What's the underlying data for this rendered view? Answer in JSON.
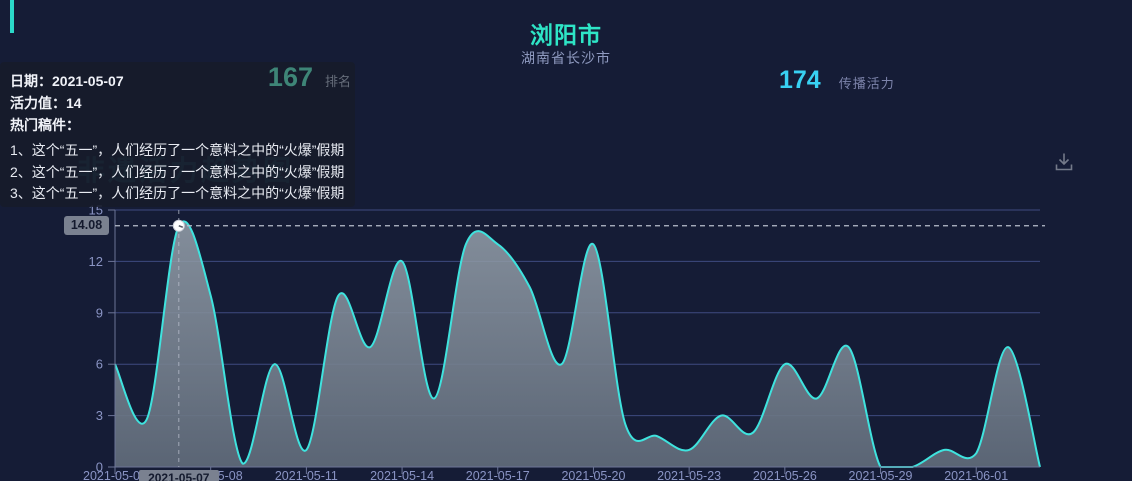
{
  "header": {
    "title": "浏阳市",
    "subtitle": "湖南省长沙市",
    "stat_value": "174",
    "stat_label": "传播活力",
    "download_icon": "download-icon"
  },
  "watermark": "非遗活力趋势图",
  "tooltip": {
    "date_label": "日期：",
    "date": "2021-05-07",
    "rank_value": "167",
    "rank_label": "排名",
    "vitality_label": "活力值：",
    "vitality_value": "14",
    "articles_label": "热门稿件：",
    "articles": [
      "1、这个“五一”，人们经历了一个意料之中的“火爆”假期",
      "2、这个“五一”，人们经历了一个意料之中的“火爆”假期",
      "3、这个“五一”，人们经历了一个意料之中的“火爆”假期"
    ]
  },
  "colors": {
    "background": "#151c36",
    "accent_teal": "#2bd9c9",
    "title_teal": "#2ee5c6",
    "stat_cyan": "#38d1f2",
    "rank_green": "#3e8577",
    "axis_label": "#8a94c4",
    "gridline": "#3e4a80",
    "axis_line": "#6b7497",
    "dashed_line": "#b9bfcd",
    "pointer_pill": "#7a8190"
  },
  "chart_data": {
    "type": "area",
    "title": "浏阳市",
    "subtitle": "湖南省长沙市",
    "x": [
      "2021-05-05",
      "2021-05-06",
      "2021-05-07",
      "2021-05-08",
      "2021-05-09",
      "2021-05-10",
      "2021-05-11",
      "2021-05-12",
      "2021-05-13",
      "2021-05-14",
      "2021-05-15",
      "2021-05-16",
      "2021-05-17",
      "2021-05-18",
      "2021-05-19",
      "2021-05-20",
      "2021-05-21",
      "2021-05-22",
      "2021-05-23",
      "2021-05-24",
      "2021-05-25",
      "2021-05-26",
      "2021-05-27",
      "2021-05-28",
      "2021-05-29",
      "2021-05-30",
      "2021-05-31",
      "2021-06-01",
      "2021-06-02",
      "2021-06-03"
    ],
    "values": [
      6,
      2.8,
      14.08,
      10,
      0.2,
      6,
      1,
      10,
      7,
      12,
      4,
      13,
      13,
      10.5,
      6,
      13,
      2.5,
      1.8,
      1,
      3,
      2,
      6,
      4,
      7,
      0,
      0,
      1,
      0.8,
      7,
      0
    ],
    "ylim": [
      0,
      15
    ],
    "y_ticks": [
      0,
      3,
      6,
      9,
      12,
      15
    ],
    "x_tick_step": 3,
    "grid": true,
    "legend": false,
    "line_color": "#3fe3de",
    "area_top_color": "rgba(150,161,172,0.85)",
    "area_bottom_color": "rgba(96,107,122,0.92)",
    "highlight": {
      "index": 2,
      "date": "2021-05-07",
      "value": 14.08,
      "value_label": "14.08"
    }
  }
}
